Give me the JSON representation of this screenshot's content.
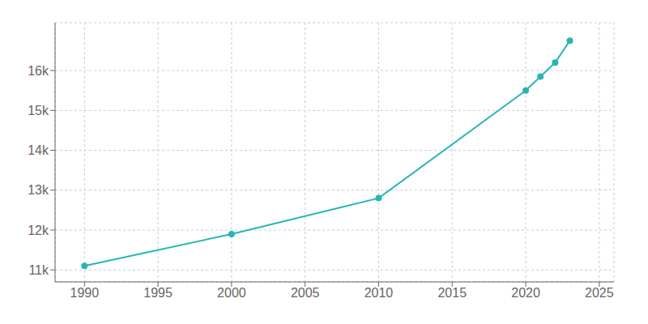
{
  "chart_data": {
    "type": "line",
    "x": [
      1990,
      2000,
      2010,
      2020,
      2021,
      2022,
      2023
    ],
    "values": [
      11100,
      11900,
      12800,
      15500,
      15850,
      16200,
      16750
    ],
    "color": "#2ab5b5",
    "marker": "o",
    "xlim": [
      1988,
      2026
    ],
    "ylim": [
      10700,
      17200
    ],
    "xticks": [
      1990,
      1995,
      2000,
      2005,
      2010,
      2015,
      2020,
      2025
    ],
    "yticks": [
      {
        "value": 11000,
        "label": "11k"
      },
      {
        "value": 12000,
        "label": "12k"
      },
      {
        "value": 13000,
        "label": "13k"
      },
      {
        "value": 14000,
        "label": "14k"
      },
      {
        "value": 15000,
        "label": "15k"
      },
      {
        "value": 16000,
        "label": "16k"
      }
    ],
    "grid": true
  }
}
